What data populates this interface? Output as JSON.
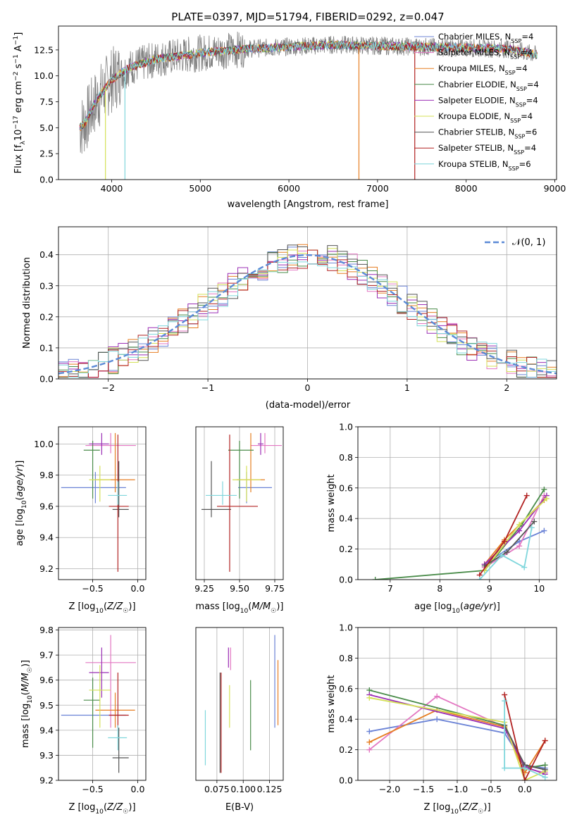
{
  "title": "PLATE=0397, MJD=51794, FIBERID=0292, z=0.047",
  "colors": [
    "#6b83d6",
    "#e377c2",
    "#e67e22",
    "#4a8c4a",
    "#9b2fb5",
    "#d4e157",
    "#555555",
    "#b22222",
    "#7fd6dc"
  ],
  "legend_spectrum": [
    {
      "base": "Chabrier MILES, N",
      "sub": "SSP",
      "tail": "=4"
    },
    {
      "base": "Salpeter MILES, N",
      "sub": "SSP",
      "tail": "=4"
    },
    {
      "base": "Kroupa MILES, N",
      "sub": "SSP",
      "tail": "=4"
    },
    {
      "base": "Chabrier ELODIE, N",
      "sub": "SSP",
      "tail": "=4"
    },
    {
      "base": "Salpeter ELODIE, N",
      "sub": "SSP",
      "tail": "=4"
    },
    {
      "base": "Kroupa ELODIE, N",
      "sub": "SSP",
      "tail": "=4"
    },
    {
      "base": "Chabrier STELIB, N",
      "sub": "SSP",
      "tail": "=6"
    },
    {
      "base": "Salpeter STELIB, N",
      "sub": "SSP",
      "tail": "=4"
    },
    {
      "base": "Kroupa STELIB, N",
      "sub": "SSP",
      "tail": "=6"
    }
  ],
  "legend_hist": "𝒩(0, 1)",
  "chart_data": [
    {
      "id": "spectrum",
      "type": "line",
      "xlabel": "wavelength [Angstrom, rest frame]",
      "ylabel": "Flux [f_λ 10^-17 erg cm^-2 s^-1 A^-1]",
      "xlim": [
        3400,
        9020
      ],
      "ylim": [
        0,
        14.8
      ],
      "xticks": [
        4000,
        5000,
        6000,
        7000,
        8000,
        9000
      ],
      "yticks": [
        0.0,
        2.5,
        5.0,
        7.5,
        10.0,
        12.5
      ],
      "continuum": {
        "x": [
          3640,
          3700,
          3800,
          3900,
          4000,
          4200,
          4500,
          5000,
          5500,
          6000,
          6500,
          7000,
          7500,
          8000,
          8500,
          8800
        ],
        "y": [
          5.0,
          5.5,
          7.2,
          8.5,
          9.6,
          10.8,
          11.6,
          12.2,
          12.6,
          12.8,
          13.0,
          12.9,
          12.8,
          12.7,
          12.6,
          12.0
        ]
      },
      "data_range": [
        3640,
        8800
      ],
      "dips": [
        {
          "x": 3930,
          "y": 0.0
        },
        {
          "x": 4150,
          "y": 0.0
        },
        {
          "x": 6790,
          "y": 0.0
        },
        {
          "x": 7420,
          "y": 0.0
        }
      ],
      "grid": false,
      "legend": "upper right"
    },
    {
      "id": "residuals",
      "type": "histogram",
      "xlabel": "(data-model)/error",
      "ylabel": "Normed distribution",
      "xlim": [
        -2.5,
        2.5
      ],
      "ylim": [
        0,
        0.49
      ],
      "xticks": [
        -2,
        -1,
        0,
        1,
        2
      ],
      "yticks": [
        0.0,
        0.1,
        0.2,
        0.3,
        0.4
      ],
      "bin_width": 0.1,
      "grid": true,
      "legend": "upper right",
      "gaussian": {
        "mu": 0,
        "sigma": 1,
        "color": "#5b8ad6"
      }
    },
    {
      "id": "age_vs_Z",
      "type": "scatter",
      "xlabel": "Z [log10(Z/Z☉)]",
      "ylabel": "age [log10(age/yr)]",
      "xlim": [
        -0.88,
        0.09
      ],
      "ylim": [
        9.13,
        10.11
      ],
      "xticks": [
        -0.5,
        0.0
      ],
      "yticks": [
        9.2,
        9.4,
        9.6,
        9.8,
        10.0
      ],
      "grid": true,
      "points": [
        {
          "x": -0.47,
          "y": 9.72,
          "xerr": [
            0.38,
            0.34
          ],
          "yerr": [
            0.1,
            0.1
          ]
        },
        {
          "x": -0.3,
          "y": 9.99,
          "xerr": [
            0.28,
            0.28
          ],
          "yerr": [
            0.05,
            0.08
          ]
        },
        {
          "x": -0.25,
          "y": 9.77,
          "xerr": [
            0.22,
            0.22
          ],
          "yerr": [
            0.08,
            0.3
          ]
        },
        {
          "x": -0.5,
          "y": 9.96,
          "xerr": [
            0.1,
            0.08
          ],
          "yerr": [
            0.31,
            0.06
          ]
        },
        {
          "x": -0.4,
          "y": 10.0,
          "xerr": [
            0.14,
            0.08
          ],
          "yerr": [
            0.07,
            0.07
          ]
        },
        {
          "x": -0.42,
          "y": 9.77,
          "xerr": [
            0.12,
            0.12
          ],
          "yerr": [
            0.14,
            0.09
          ]
        },
        {
          "x": -0.21,
          "y": 9.58,
          "xerr": [
            0.07,
            0.11
          ],
          "yerr": [
            0.05,
            0.31
          ]
        },
        {
          "x": -0.22,
          "y": 9.6,
          "xerr": [
            0.1,
            0.12
          ],
          "yerr": [
            0.42,
            0.46
          ]
        },
        {
          "x": -0.22,
          "y": 9.67,
          "xerr": [
            0.11,
            0.1
          ],
          "yerr": [
            0.06,
            0.09
          ]
        }
      ]
    },
    {
      "id": "age_vs_mass",
      "type": "scatter",
      "xlabel": "mass [log10(M/M☉)]",
      "xlim": [
        9.19,
        9.81
      ],
      "ylim": [
        9.13,
        10.11
      ],
      "xticks": [
        9.25,
        9.5,
        9.75
      ],
      "grid": true,
      "points": [
        {
          "x": 9.55,
          "y": 9.72,
          "xerr": [
            0.06,
            0.18
          ],
          "yerr": [
            0.1,
            0.1
          ]
        },
        {
          "x": 9.68,
          "y": 9.99,
          "xerr": [
            0.1,
            0.12
          ],
          "yerr": [
            0.05,
            0.08
          ]
        },
        {
          "x": 9.58,
          "y": 9.77,
          "xerr": [
            0.1,
            0.1
          ],
          "yerr": [
            0.08,
            0.3
          ]
        },
        {
          "x": 9.5,
          "y": 9.96,
          "xerr": [
            0.08,
            0.1
          ],
          "yerr": [
            0.31,
            0.06
          ]
        },
        {
          "x": 9.65,
          "y": 10.0,
          "xerr": [
            0.02,
            0.02
          ],
          "yerr": [
            0.07,
            0.07
          ]
        },
        {
          "x": 9.55,
          "y": 9.77,
          "xerr": [
            0.1,
            0.1
          ],
          "yerr": [
            0.14,
            0.09
          ]
        },
        {
          "x": 9.3,
          "y": 9.58,
          "xerr": [
            0.07,
            0.14
          ],
          "yerr": [
            0.05,
            0.31
          ]
        },
        {
          "x": 9.43,
          "y": 9.6,
          "xerr": [
            0.09,
            0.2
          ],
          "yerr": [
            0.42,
            0.46
          ]
        },
        {
          "x": 9.38,
          "y": 9.67,
          "xerr": [
            0.12,
            0.1
          ],
          "yerr": [
            0.06,
            0.09
          ]
        }
      ]
    },
    {
      "id": "weight_vs_age",
      "type": "line",
      "xlabel": "age [log10(age/yr)]",
      "ylabel": "mass weight",
      "xlim": [
        6.35,
        10.35
      ],
      "ylim": [
        0,
        1.0
      ],
      "xticks": [
        7,
        8,
        9,
        10
      ],
      "yticks": [
        0.0,
        0.2,
        0.4,
        0.6,
        0.8,
        1.0
      ],
      "grid": true,
      "series": [
        {
          "x": [
            8.9,
            9.6,
            10.1
          ],
          "y": [
            0.1,
            0.25,
            0.32
          ]
        },
        {
          "x": [
            8.9,
            9.6,
            10.1
          ],
          "y": [
            0.08,
            0.22,
            0.55
          ]
        },
        {
          "x": [
            8.9,
            9.3,
            10.1
          ],
          "y": [
            0.1,
            0.26,
            0.52
          ]
        },
        {
          "x": [
            6.7,
            8.9,
            9.65,
            10.1
          ],
          "y": [
            0.0,
            0.06,
            0.36,
            0.59
          ]
        },
        {
          "x": [
            8.9,
            9.6,
            10.15
          ],
          "y": [
            0.1,
            0.32,
            0.55
          ]
        },
        {
          "x": [
            8.9,
            9.6,
            10.15
          ],
          "y": [
            0.06,
            0.36,
            0.53
          ]
        },
        {
          "x": [
            8.9,
            9.35,
            9.9
          ],
          "y": [
            0.09,
            0.18,
            0.38
          ]
        },
        {
          "x": [
            8.8,
            9.3,
            9.75
          ],
          "y": [
            0.03,
            0.25,
            0.55
          ]
        },
        {
          "x": [
            8.8,
            9.25,
            9.7,
            9.85
          ],
          "y": [
            0.0,
            0.16,
            0.08,
            0.34
          ]
        }
      ]
    },
    {
      "id": "mass_vs_Z",
      "type": "scatter",
      "xlabel": "Z [log10(Z/Z☉)]",
      "ylabel": "mass [log10(M/M☉)]",
      "xlim": [
        -0.88,
        0.09
      ],
      "ylim": [
        9.2,
        9.81
      ],
      "xticks": [
        -0.5,
        0.0
      ],
      "yticks": [
        9.2,
        9.3,
        9.4,
        9.5,
        9.6,
        9.7,
        9.8
      ],
      "grid": true,
      "points": [
        {
          "x": -0.47,
          "y": 9.46,
          "xerr": [
            0.38,
            0.34
          ],
          "yerr": [
            0.0,
            0.0
          ]
        },
        {
          "x": -0.3,
          "y": 9.67,
          "xerr": [
            0.28,
            0.28
          ],
          "yerr": [
            0.26,
            0.11
          ]
        },
        {
          "x": -0.25,
          "y": 9.48,
          "xerr": [
            0.22,
            0.22
          ],
          "yerr": [
            0.07,
            0.07
          ]
        },
        {
          "x": -0.5,
          "y": 9.52,
          "xerr": [
            0.1,
            0.08
          ],
          "yerr": [
            0.19,
            0.09
          ]
        },
        {
          "x": -0.4,
          "y": 9.63,
          "xerr": [
            0.14,
            0.08
          ],
          "yerr": [
            0.1,
            0.1
          ]
        },
        {
          "x": -0.42,
          "y": 9.56,
          "xerr": [
            0.12,
            0.12
          ],
          "yerr": [
            0.15,
            0.1
          ]
        },
        {
          "x": -0.21,
          "y": 9.29,
          "xerr": [
            0.07,
            0.11
          ],
          "yerr": [
            0.06,
            0.12
          ]
        },
        {
          "x": -0.22,
          "y": 9.46,
          "xerr": [
            0.1,
            0.12
          ],
          "yerr": [
            0.05,
            0.17
          ]
        },
        {
          "x": -0.22,
          "y": 9.37,
          "xerr": [
            0.11,
            0.1
          ],
          "yerr": [
            0.05,
            0.05
          ]
        }
      ]
    },
    {
      "id": "mass_vs_ebv",
      "type": "scatter",
      "xlabel": "E(B-V)",
      "xlim": [
        0.055,
        0.138
      ],
      "ylim": [
        9.2,
        9.81
      ],
      "xticks": [
        0.075,
        0.1,
        0.125
      ],
      "grid": true,
      "points": [
        {
          "x": 0.13,
          "y": 9.6,
          "yerr": [
            0.19,
            0.18
          ]
        },
        {
          "x": 0.088,
          "y": 9.65,
          "yerr": [
            0.01,
            0.08
          ]
        },
        {
          "x": 0.133,
          "y": 9.56,
          "yerr": [
            0.14,
            0.12
          ]
        },
        {
          "x": 0.107,
          "y": 9.47,
          "yerr": [
            0.15,
            0.13
          ]
        },
        {
          "x": 0.086,
          "y": 9.66,
          "yerr": [
            0.01,
            0.07
          ]
        },
        {
          "x": 0.087,
          "y": 9.5,
          "yerr": [
            0.09,
            0.08
          ]
        },
        {
          "x": 0.078,
          "y": 9.43,
          "yerr": [
            0.2,
            0.2
          ]
        },
        {
          "x": 0.079,
          "y": 9.43,
          "yerr": [
            0.2,
            0.2
          ]
        },
        {
          "x": 0.064,
          "y": 9.37,
          "yerr": [
            0.11,
            0.11
          ]
        }
      ]
    },
    {
      "id": "weight_vs_Z",
      "type": "line",
      "xlabel": "Z [log10(Z/Z☉)]",
      "ylabel": "mass weight",
      "xlim": [
        -2.47,
        0.47
      ],
      "ylim": [
        0,
        1.0
      ],
      "xticks": [
        -2.0,
        -1.5,
        -1.0,
        -0.5,
        0.0
      ],
      "yticks": [
        0.0,
        0.2,
        0.4,
        0.6,
        0.8,
        1.0
      ],
      "grid": true,
      "series": [
        {
          "x": [
            -2.3,
            -1.3,
            -0.3,
            0.0,
            0.3
          ],
          "y": [
            0.32,
            0.4,
            0.31,
            0.1,
            0.08
          ]
        },
        {
          "x": [
            -2.3,
            -1.3,
            -0.3,
            0.0,
            0.3
          ],
          "y": [
            0.2,
            0.55,
            0.35,
            0.08,
            0.05
          ]
        },
        {
          "x": [
            -2.3,
            -1.3,
            -0.3,
            0.0,
            0.3
          ],
          "y": [
            0.25,
            0.46,
            0.35,
            0.05,
            0.26
          ]
        },
        {
          "x": [
            -2.3,
            -0.3,
            0.0,
            0.3
          ],
          "y": [
            0.59,
            0.36,
            0.08,
            0.1
          ]
        },
        {
          "x": [
            -2.3,
            -0.3,
            0.0,
            0.3
          ],
          "y": [
            0.56,
            0.34,
            0.09,
            0.04
          ]
        },
        {
          "x": [
            -2.3,
            -0.3,
            0.0,
            0.3
          ],
          "y": [
            0.54,
            0.38,
            0.0,
            0.06
          ]
        },
        {
          "x": [
            -0.3,
            0.0,
            0.3
          ],
          "y": [
            0.36,
            0.1,
            0.07
          ]
        },
        {
          "x": [
            -0.3,
            0.0,
            0.3
          ],
          "y": [
            0.56,
            0.0,
            0.26
          ]
        },
        {
          "x": [
            -0.3,
            -0.3,
            0.0,
            0.3
          ],
          "y": [
            0.52,
            0.08,
            0.08,
            0.02
          ]
        }
      ]
    }
  ]
}
